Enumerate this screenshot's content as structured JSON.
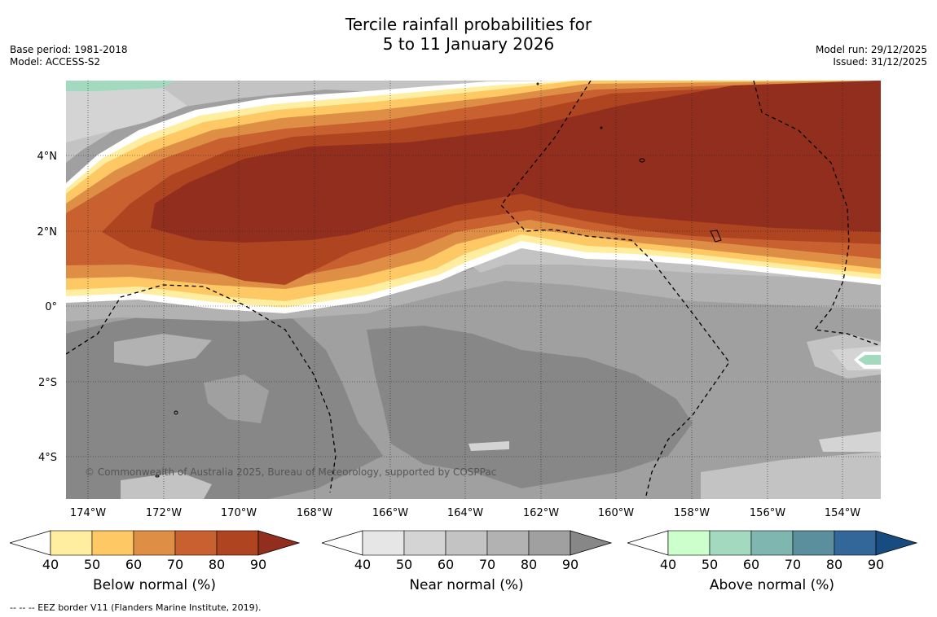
{
  "header": {
    "title_line1": "Tercile rainfall probabilities for",
    "title_line2": "5 to 11 January 2026",
    "base_period": "Base period: 1981-2018",
    "model": "Model: ACCESS-S2",
    "model_run": "Model run: 29/12/2025",
    "issued": "Issued: 31/12/2025"
  },
  "map": {
    "lon_ticks": [
      "174°W",
      "172°W",
      "170°W",
      "168°W",
      "166°W",
      "164°W",
      "162°W",
      "160°W",
      "158°W",
      "156°W",
      "154°W"
    ],
    "lat_ticks": [
      "4°N",
      "2°N",
      "0°",
      "2°S",
      "4°S"
    ],
    "copyright": "© Commonwealth of Australia 2025, Bureau of Meteorology, supported by COSPPac"
  },
  "colorbars": [
    {
      "name": "below",
      "title": "Below normal (%)",
      "ticks": [
        "40",
        "50",
        "60",
        "70",
        "80",
        "90"
      ],
      "colors": [
        "#ffeda0",
        "#fec864",
        "#de8f45",
        "#c8612f",
        "#ae4420",
        "#922e1d"
      ]
    },
    {
      "name": "near",
      "title": "Near normal (%)",
      "ticks": [
        "40",
        "50",
        "60",
        "70",
        "80",
        "90"
      ],
      "colors": [
        "#e6e6e6",
        "#d4d4d4",
        "#c3c3c3",
        "#b2b2b2",
        "#a0a0a0",
        "#878787"
      ]
    },
    {
      "name": "above",
      "title": "Above normal (%)",
      "ticks": [
        "40",
        "50",
        "60",
        "70",
        "80",
        "90"
      ],
      "colors": [
        "#ccffcc",
        "#a3d9be",
        "#80b6b0",
        "#5b8f9e",
        "#336699",
        "#164c80"
      ]
    }
  ],
  "footnote": "--  --  -- EEZ border V11 (Flanders Marine Institute, 2019)."
}
